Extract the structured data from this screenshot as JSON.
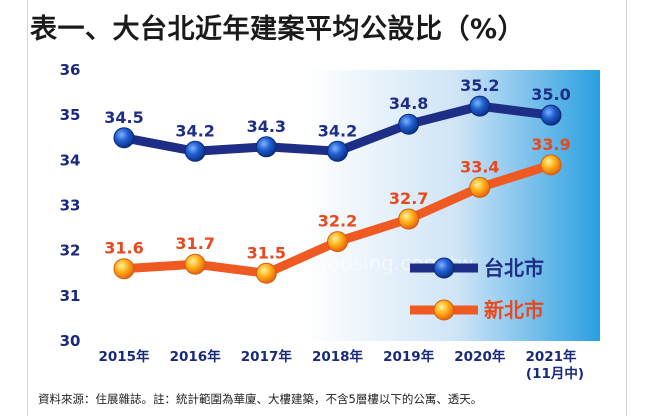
{
  "title": "表一、大台北近年建案平均公設比（%）",
  "footnote": "資料來源：住展雜誌。註：統計範圍為華廈、大樓建築，不含5層樓以下的公寓、透天。",
  "watermark": "www.myhousing.com.tw",
  "colors": {
    "taipei": "#1e2e86",
    "newtaipei": "#ee5a22",
    "newtaipei_label": "#e9481c",
    "axis_text": "#1a2a7a"
  },
  "chart_data": {
    "type": "line",
    "title": "表一、大台北近年建案平均公設比（%）",
    "xlabel": "",
    "ylabel": "",
    "categories": [
      "2015年",
      "2016年",
      "2017年",
      "2018年",
      "2019年",
      "2020年",
      "2021年"
    ],
    "category_notes": [
      "",
      "",
      "",
      "",
      "",
      "",
      "(11月中)"
    ],
    "ylim": [
      30,
      36
    ],
    "yticks": [
      30,
      31,
      32,
      33,
      34,
      35,
      36
    ],
    "grid": false,
    "legend_placement": "bottom-right",
    "series": [
      {
        "name": "台北市",
        "values": [
          34.5,
          34.2,
          34.3,
          34.2,
          34.8,
          35.2,
          35.0
        ],
        "labels": [
          "34.5",
          "34.2",
          "34.3",
          "34.2",
          "34.8",
          "35.2",
          "35.0"
        ]
      },
      {
        "name": "新北市",
        "values": [
          31.6,
          31.7,
          31.5,
          32.2,
          32.7,
          33.4,
          33.9
        ],
        "labels": [
          "31.6",
          "31.7",
          "31.5",
          "32.2",
          "32.7",
          "33.4",
          "33.9"
        ]
      }
    ]
  }
}
